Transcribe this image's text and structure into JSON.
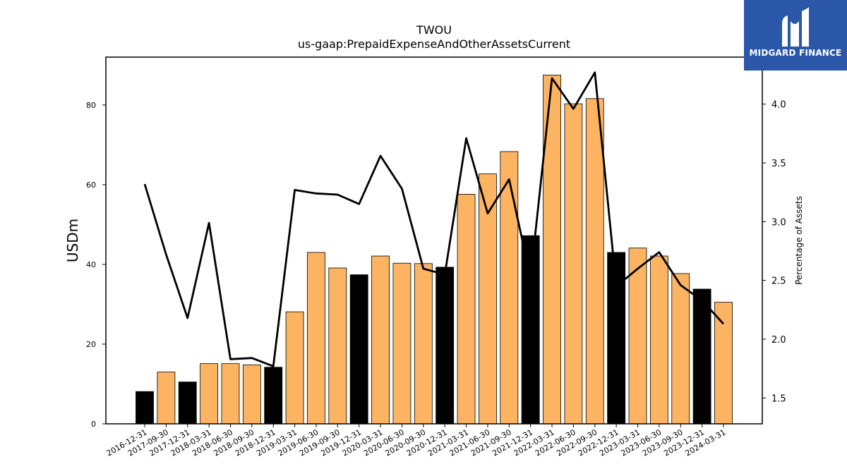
{
  "chart_data": {
    "type": "bar",
    "title": "TWOU",
    "subtitle": "us-gaap:PrepaidExpenseAndOtherAssetsCurrent",
    "ylabel": "USDm",
    "y2label": "Percentage of Assets",
    "categories": [
      "2016-12-31",
      "2017-09-30",
      "2017-12-31",
      "2018-03-31",
      "2018-06-30",
      "2018-09-30",
      "2018-12-31",
      "2019-03-31",
      "2019-06-30",
      "2019-09-30",
      "2019-12-31",
      "2020-03-31",
      "2020-06-30",
      "2020-09-30",
      "2020-12-31",
      "2021-03-31",
      "2021-06-30",
      "2021-09-30",
      "2021-12-31",
      "2022-03-31",
      "2022-06-30",
      "2022-09-30",
      "2022-12-31",
      "2023-03-31",
      "2023-06-30",
      "2023-09-30",
      "2023-12-31",
      "2024-03-31"
    ],
    "series": [
      {
        "kind": "bar",
        "axis": "left",
        "values": [
          8.1,
          13.0,
          10.5,
          15.1,
          15.1,
          14.8,
          14.2,
          28.1,
          43.0,
          39.1,
          37.4,
          42.1,
          40.3,
          40.2,
          39.3,
          57.6,
          62.7,
          68.3,
          47.2,
          87.5,
          80.3,
          81.6,
          43.0,
          44.1,
          42.1,
          37.7,
          33.8,
          30.5
        ],
        "colors": [
          "#000000",
          "#fdb462",
          "#000000",
          "#fdb462",
          "#fdb462",
          "#fdb462",
          "#000000",
          "#fdb462",
          "#fdb462",
          "#fdb462",
          "#000000",
          "#fdb462",
          "#fdb462",
          "#fdb462",
          "#000000",
          "#fdb462",
          "#fdb462",
          "#fdb462",
          "#000000",
          "#fdb462",
          "#fdb462",
          "#fdb462",
          "#000000",
          "#fdb462",
          "#fdb462",
          "#fdb462",
          "#000000",
          "#fdb462"
        ]
      },
      {
        "kind": "line",
        "axis": "right",
        "color": "#000000",
        "values": [
          3.32,
          2.72,
          2.18,
          2.99,
          1.83,
          1.84,
          1.77,
          3.27,
          3.24,
          3.23,
          3.15,
          3.56,
          3.28,
          2.6,
          2.55,
          3.71,
          3.07,
          3.36,
          2.52,
          4.22,
          3.96,
          4.27,
          2.45,
          2.6,
          2.74,
          2.46,
          2.33,
          2.13
        ]
      }
    ],
    "ylim": [
      0,
      92
    ],
    "yticks": [
      0,
      20,
      40,
      60,
      80
    ],
    "y2lim": [
      1.28,
      4.4
    ],
    "y2ticks": [
      "1.5",
      "2.0",
      "2.5",
      "3.0",
      "3.5",
      "4.0"
    ],
    "grid": false,
    "bar_edge_color": "#000000"
  },
  "logo": {
    "text": "MIDGARD FINANCE",
    "background": "#2a57a8",
    "color": "#ffffff"
  }
}
